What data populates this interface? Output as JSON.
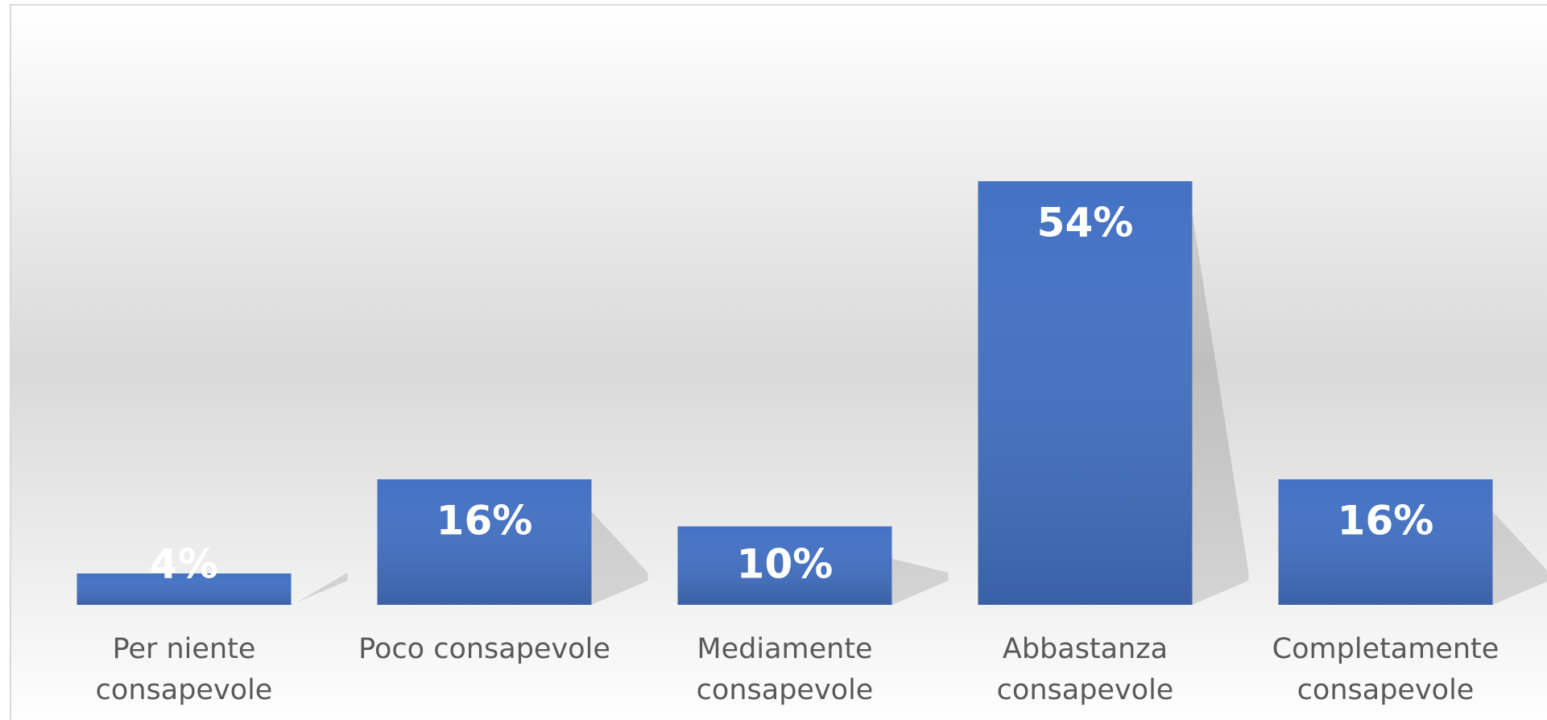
{
  "chart_data": {
    "type": "bar",
    "categories": [
      "Per niente consapevole",
      "Poco consapevole",
      "Mediamente consapevole",
      "Abbastanza consapevole",
      "Completamente consapevole"
    ],
    "values": [
      4,
      16,
      10,
      54,
      16
    ],
    "value_labels": [
      "4%",
      "16%",
      "10%",
      "54%",
      "16%"
    ],
    "color": "#4472c4"
  }
}
